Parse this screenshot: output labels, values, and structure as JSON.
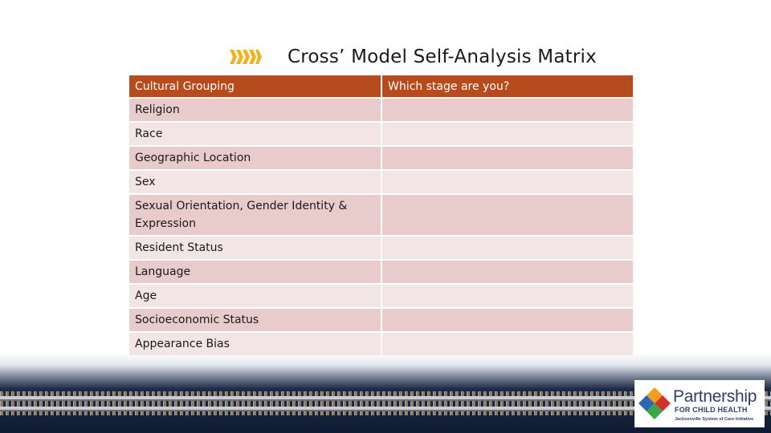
{
  "title": "Cross’ Model Self-Analysis Matrix",
  "table": {
    "headers": [
      "Cultural Grouping",
      "Which stage are you?"
    ],
    "rows": [
      {
        "grouping": "Religion",
        "stage": ""
      },
      {
        "grouping": "Race",
        "stage": ""
      },
      {
        "grouping": "Geographic Location",
        "stage": ""
      },
      {
        "grouping": "Sex",
        "stage": ""
      },
      {
        "grouping": "Sexual Orientation, Gender Identity & Expression",
        "stage": ""
      },
      {
        "grouping": "Resident Status",
        "stage": ""
      },
      {
        "grouping": "Language",
        "stage": ""
      },
      {
        "grouping": "Age",
        "stage": ""
      },
      {
        "grouping": "Socioeconomic Status",
        "stage": ""
      },
      {
        "grouping": "Appearance Bias",
        "stage": ""
      }
    ]
  },
  "logo": {
    "name": "Partnership",
    "subtitle": "FOR CHILD HEALTH",
    "tagline": "Jacksonville System of Care Initiative",
    "colors": {
      "orange": "#f39c1e",
      "blue": "#2f66b3",
      "red": "#d3322c",
      "green": "#3aa64a"
    }
  },
  "colors": {
    "header": "#b64b1d",
    "row_odd": "#e8cbcb",
    "row_even": "#f3e5e5",
    "accent": "#f2b320"
  }
}
